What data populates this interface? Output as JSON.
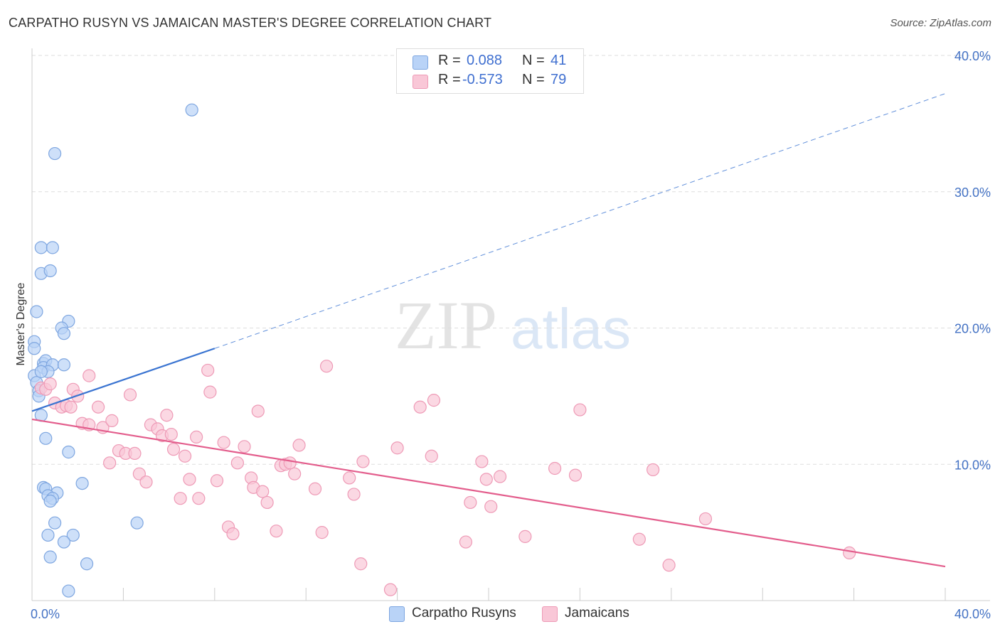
{
  "header": {
    "title": "CARPATHO RUSYN VS JAMAICAN MASTER'S DEGREE CORRELATION CHART",
    "source": "Source: ZipAtlas.com"
  },
  "watermark": {
    "zip": "ZIP",
    "atlas": "atlas"
  },
  "legend": {
    "rows": [
      {
        "r_label": "R =",
        "r_value": "0.088",
        "n_label": "N =",
        "n_value": "41",
        "fill": "#b9d3f7",
        "stroke": "#7ea6e0"
      },
      {
        "r_label": "R =",
        "r_value": "-0.573",
        "n_label": "N =",
        "n_value": "79",
        "fill": "#f9c7d7",
        "stroke": "#ee9ab6"
      }
    ]
  },
  "chart_data": {
    "type": "scatter",
    "title": "CARPATHO RUSYN VS JAMAICAN MASTER'S DEGREE CORRELATION CHART",
    "xlabel": "",
    "ylabel": "Master's Degree",
    "xlim": [
      0,
      40
    ],
    "ylim": [
      0,
      40
    ],
    "x_tick_labels": [
      "0.0%",
      "40.0%"
    ],
    "y_tick_values": [
      10,
      20,
      30,
      40
    ],
    "y_tick_labels": [
      "10.0%",
      "20.0%",
      "30.0%",
      "40.0%"
    ],
    "grid": true,
    "legend_position": "bottom",
    "series": [
      {
        "name": "Carpatho Rusyns",
        "color": "#5b8fd9",
        "fill": "#b9d3f7",
        "stroke": "#7ea6e0",
        "trend": {
          "solid": [
            [
              0,
              13.9
            ],
            [
              8,
              18.5
            ]
          ],
          "dashed": [
            [
              8,
              18.5
            ],
            [
              40,
              37.2
            ]
          ],
          "color": "#3a74d1"
        },
        "points": [
          [
            7.0,
            36.0
          ],
          [
            1.0,
            32.8
          ],
          [
            0.4,
            25.9
          ],
          [
            0.9,
            25.9
          ],
          [
            0.4,
            24.0
          ],
          [
            0.8,
            24.2
          ],
          [
            0.2,
            21.2
          ],
          [
            1.6,
            20.5
          ],
          [
            1.3,
            20.0
          ],
          [
            1.4,
            19.6
          ],
          [
            0.1,
            19.0
          ],
          [
            0.1,
            18.5
          ],
          [
            0.5,
            17.4
          ],
          [
            0.6,
            17.6
          ],
          [
            0.5,
            17.1
          ],
          [
            0.9,
            17.3
          ],
          [
            1.4,
            17.3
          ],
          [
            0.7,
            16.8
          ],
          [
            0.1,
            16.5
          ],
          [
            0.2,
            16.0
          ],
          [
            0.3,
            15.4
          ],
          [
            0.3,
            15.0
          ],
          [
            0.4,
            13.6
          ],
          [
            0.6,
            11.9
          ],
          [
            1.6,
            10.9
          ],
          [
            2.2,
            8.6
          ],
          [
            0.5,
            8.3
          ],
          [
            0.6,
            8.2
          ],
          [
            1.1,
            7.9
          ],
          [
            0.7,
            7.7
          ],
          [
            0.9,
            7.5
          ],
          [
            0.8,
            7.3
          ],
          [
            4.6,
            5.7
          ],
          [
            1.0,
            5.7
          ],
          [
            0.7,
            4.8
          ],
          [
            1.8,
            4.8
          ],
          [
            1.4,
            4.3
          ],
          [
            0.8,
            3.2
          ],
          [
            2.4,
            2.7
          ],
          [
            1.6,
            0.7
          ],
          [
            0.4,
            16.8
          ]
        ]
      },
      {
        "name": "Jamaicans",
        "color": "#e8729b",
        "fill": "#f9c7d7",
        "stroke": "#ee9ab6",
        "trend": {
          "solid": [
            [
              0,
              13.3
            ],
            [
              40,
              2.5
            ]
          ],
          "color": "#e35d8c"
        },
        "points": [
          [
            0.4,
            15.6
          ],
          [
            0.6,
            15.5
          ],
          [
            0.8,
            15.9
          ],
          [
            1.0,
            14.5
          ],
          [
            1.3,
            14.2
          ],
          [
            1.5,
            14.3
          ],
          [
            1.7,
            14.2
          ],
          [
            1.8,
            15.5
          ],
          [
            2.0,
            15.0
          ],
          [
            2.5,
            16.5
          ],
          [
            2.2,
            13.0
          ],
          [
            2.5,
            12.9
          ],
          [
            2.9,
            14.2
          ],
          [
            3.1,
            12.7
          ],
          [
            3.5,
            13.2
          ],
          [
            3.8,
            11.0
          ],
          [
            4.1,
            10.8
          ],
          [
            4.5,
            10.8
          ],
          [
            4.3,
            15.1
          ],
          [
            3.4,
            10.1
          ],
          [
            4.7,
            9.3
          ],
          [
            5.0,
            8.7
          ],
          [
            5.2,
            12.9
          ],
          [
            5.5,
            12.6
          ],
          [
            5.7,
            12.1
          ],
          [
            5.9,
            13.6
          ],
          [
            6.1,
            12.2
          ],
          [
            6.2,
            11.1
          ],
          [
            6.5,
            7.5
          ],
          [
            6.7,
            10.6
          ],
          [
            6.9,
            8.9
          ],
          [
            7.2,
            12.0
          ],
          [
            7.3,
            7.5
          ],
          [
            7.7,
            16.9
          ],
          [
            7.8,
            15.3
          ],
          [
            8.1,
            8.8
          ],
          [
            8.4,
            11.6
          ],
          [
            8.6,
            5.4
          ],
          [
            8.8,
            4.9
          ],
          [
            9.0,
            10.1
          ],
          [
            9.3,
            11.3
          ],
          [
            9.6,
            9.0
          ],
          [
            9.7,
            8.3
          ],
          [
            9.9,
            13.9
          ],
          [
            10.1,
            8.0
          ],
          [
            10.3,
            7.2
          ],
          [
            10.7,
            5.1
          ],
          [
            10.9,
            9.9
          ],
          [
            11.1,
            10.0
          ],
          [
            11.3,
            10.1
          ],
          [
            11.5,
            9.3
          ],
          [
            11.7,
            11.4
          ],
          [
            12.4,
            8.2
          ],
          [
            12.7,
            5.0
          ],
          [
            12.9,
            17.2
          ],
          [
            13.9,
            9.0
          ],
          [
            14.1,
            7.8
          ],
          [
            14.4,
            2.7
          ],
          [
            14.5,
            10.2
          ],
          [
            15.7,
            0.8
          ],
          [
            16.0,
            11.2
          ],
          [
            17.0,
            14.2
          ],
          [
            17.5,
            10.6
          ],
          [
            17.6,
            14.7
          ],
          [
            19.0,
            4.3
          ],
          [
            19.2,
            7.2
          ],
          [
            19.7,
            10.2
          ],
          [
            19.9,
            8.9
          ],
          [
            20.1,
            6.9
          ],
          [
            20.5,
            9.1
          ],
          [
            21.6,
            4.7
          ],
          [
            22.9,
            9.7
          ],
          [
            24.0,
            14.0
          ],
          [
            23.8,
            9.2
          ],
          [
            26.6,
            4.5
          ],
          [
            27.2,
            9.6
          ],
          [
            27.9,
            2.6
          ],
          [
            29.5,
            6.0
          ],
          [
            35.8,
            3.5
          ]
        ]
      }
    ]
  }
}
